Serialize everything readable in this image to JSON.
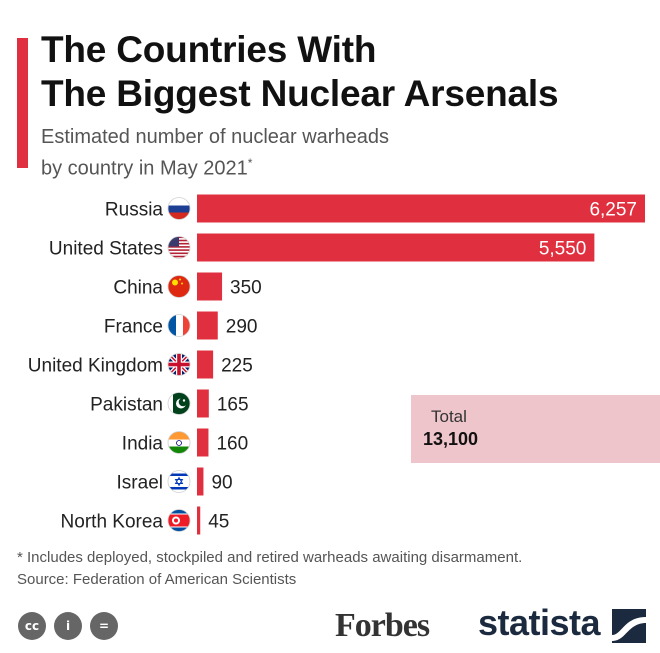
{
  "header": {
    "title_line1": "The Countries With",
    "title_line2": "The Biggest Nuclear Arsenals",
    "subtitle_line1": "Estimated number of nuclear warheads",
    "subtitle_line2": "by country in May 2021",
    "subtitle_mark": "*"
  },
  "chart_data": {
    "type": "bar",
    "orientation": "horizontal",
    "categories": [
      "Russia",
      "United States",
      "China",
      "France",
      "United Kingdom",
      "Pakistan",
      "India",
      "Israel",
      "North Korea"
    ],
    "values": [
      6257,
      5550,
      350,
      290,
      225,
      165,
      160,
      90,
      45
    ],
    "value_labels": [
      "6,257",
      "5,550",
      "350",
      "290",
      "225",
      "165",
      "160",
      "90",
      "45"
    ],
    "flags": [
      "russia-flag-icon",
      "usa-flag-icon",
      "china-flag-icon",
      "france-flag-icon",
      "uk-flag-icon",
      "pakistan-flag-icon",
      "india-flag-icon",
      "israel-flag-icon",
      "north-korea-flag-icon"
    ],
    "xlim": [
      0,
      6257
    ],
    "bar_color": "#e0303f",
    "grid": false
  },
  "total": {
    "label": "Total",
    "value": "13,100"
  },
  "footer": {
    "footnote": "* Includes deployed, stockpiled and retired warheads awaiting disarmament.",
    "source": "Source: Federation of American Scientists",
    "cc_icons": [
      "cc-icon",
      "attribution-icon",
      "no-derivatives-icon"
    ],
    "cc_glyphs": [
      "cc",
      "i",
      "="
    ],
    "forbes_logo": "Forbes",
    "statista_logo": "statista"
  }
}
